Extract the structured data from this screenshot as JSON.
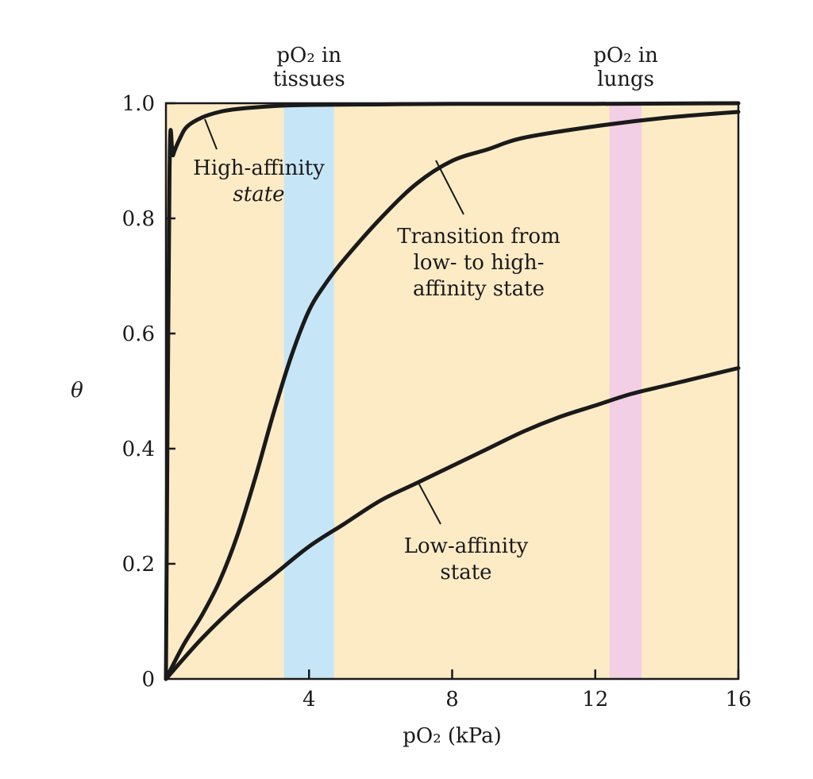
{
  "colors": {
    "plot_background": "#fdebc6",
    "tissues_band": "#c6e6f7",
    "lungs_band": "#f2cfe4",
    "curve": "#1a1a1a"
  },
  "chart_data": {
    "type": "line",
    "xlabel": "pO₂ (kPa)",
    "ylabel": "θ",
    "xlim": [
      0,
      16
    ],
    "ylim": [
      0,
      1.0
    ],
    "xticks": [
      4,
      8,
      12,
      16
    ],
    "xtick_labels": [
      "4",
      "8",
      "12",
      "16"
    ],
    "yticks": [
      0,
      0.2,
      0.4,
      0.6,
      0.8,
      1.0
    ],
    "ytick_labels": [
      "0",
      "0.2",
      "0.4",
      "0.6",
      "0.8",
      "1.0"
    ],
    "grid": false,
    "bands": [
      {
        "name": "tissues",
        "x_range": [
          3.3,
          4.7
        ],
        "label_lines": [
          "pO₂ in",
          "tissues"
        ],
        "color": "#c6e6f7"
      },
      {
        "name": "lungs",
        "x_range": [
          12.4,
          13.3
        ],
        "label_lines": [
          "pO₂ in",
          "lungs"
        ],
        "color": "#f2cfe4"
      }
    ],
    "series": [
      {
        "key": "high-affinity",
        "label_lines": [
          "High-affinity",
          "state"
        ],
        "x": [
          0,
          0.1,
          0.2,
          0.4,
          0.6,
          1.0,
          1.5,
          2.0,
          3.0,
          4.0,
          6.0,
          8.0,
          12.0,
          16.0
        ],
        "y": [
          0,
          0.88,
          0.91,
          0.94,
          0.96,
          0.975,
          0.985,
          0.99,
          0.995,
          0.997,
          0.998,
          0.999,
          0.999,
          1.0
        ]
      },
      {
        "key": "transition",
        "label_lines": [
          "Transition from",
          "low- to high-",
          "affinity state"
        ],
        "x": [
          0,
          0.5,
          1.0,
          1.5,
          2.0,
          2.5,
          3.0,
          3.5,
          4.0,
          4.5,
          5.0,
          6.0,
          7.0,
          8.0,
          9.0,
          10.0,
          12.0,
          14.0,
          16.0
        ],
        "y": [
          0,
          0.06,
          0.11,
          0.17,
          0.25,
          0.35,
          0.46,
          0.56,
          0.64,
          0.69,
          0.73,
          0.8,
          0.86,
          0.9,
          0.92,
          0.94,
          0.96,
          0.975,
          0.985
        ]
      },
      {
        "key": "low-affinity",
        "label_lines": [
          "Low-affinity",
          "state"
        ],
        "x": [
          0,
          1,
          2,
          3,
          4,
          5,
          6,
          7,
          8,
          9,
          10,
          11,
          12,
          13,
          14,
          15,
          16
        ],
        "y": [
          0,
          0.07,
          0.13,
          0.18,
          0.23,
          0.27,
          0.31,
          0.34,
          0.37,
          0.4,
          0.43,
          0.455,
          0.475,
          0.495,
          0.51,
          0.525,
          0.54
        ]
      }
    ]
  }
}
